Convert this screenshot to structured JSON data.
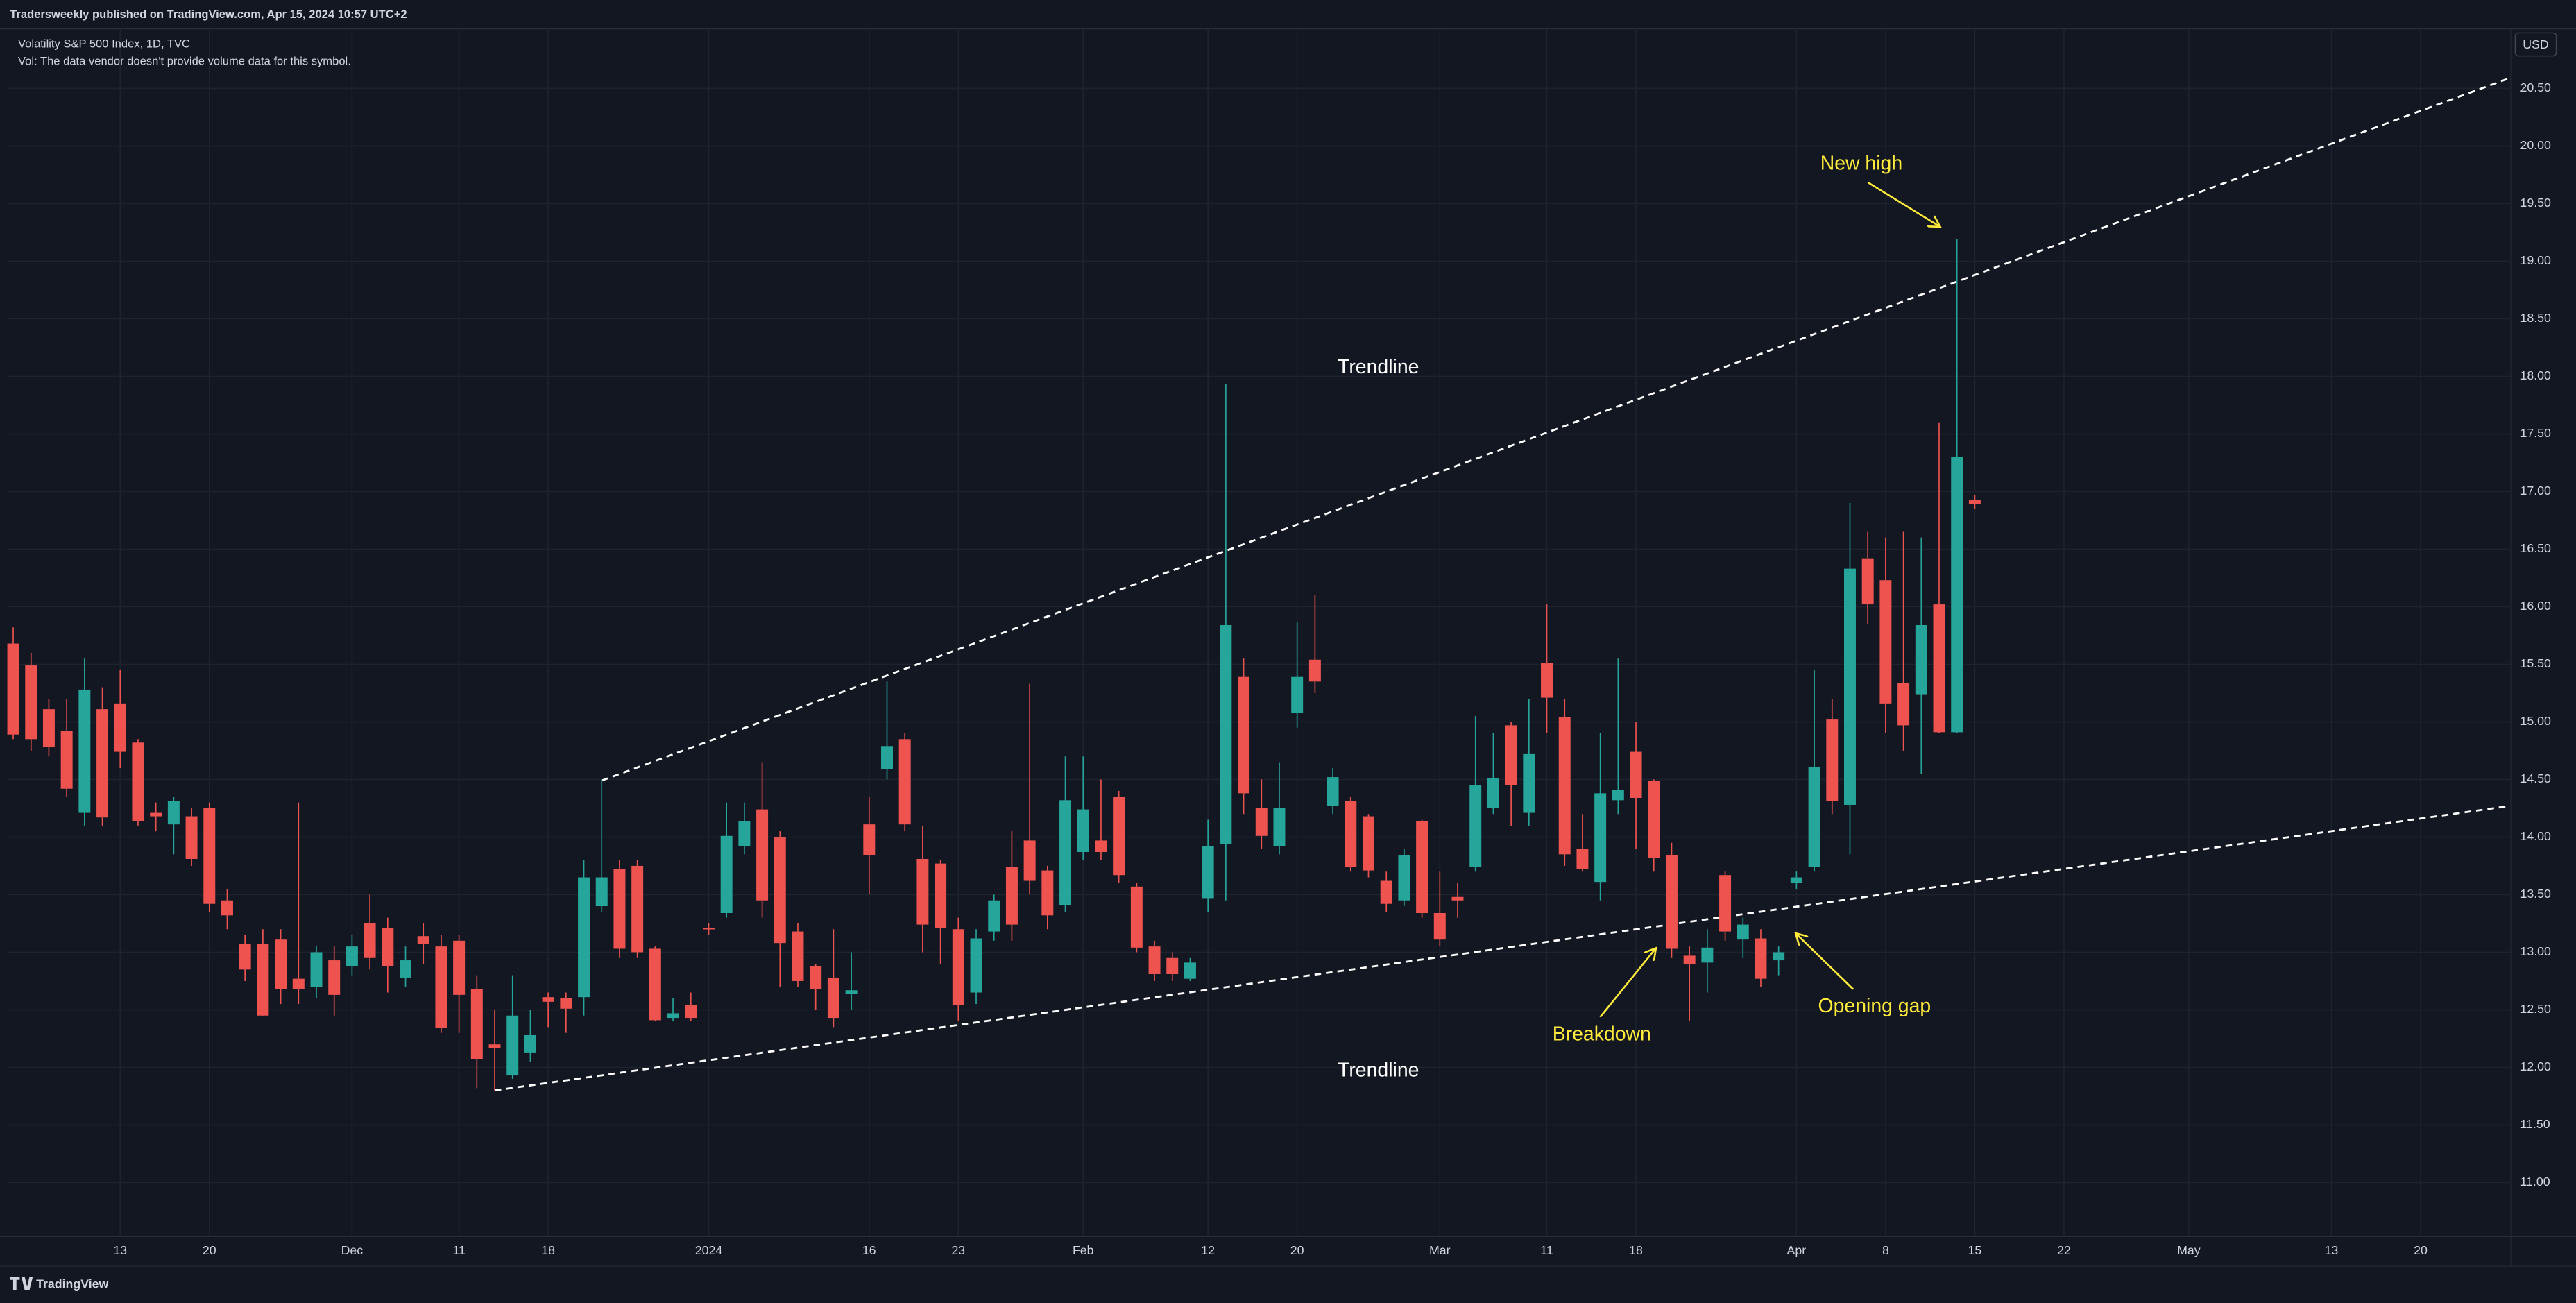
{
  "header": {
    "published": "Tradersweekly published on TradingView.com, Apr 15, 2024 10:57 UTC+2",
    "symbol": "Volatility S&P 500 Index, 1D, TVC",
    "volume_note": "Vol: The data vendor doesn't provide volume data for this symbol."
  },
  "footer": {
    "brand": "TradingView"
  },
  "chart_data": {
    "type": "candlestick",
    "currency": "USD",
    "up_color": "#26a69a",
    "down_color": "#ef5350",
    "grid": true,
    "open": [
      15.68,
      15.49,
      15.11,
      14.92,
      14.21,
      15.11,
      15.16,
      14.82,
      14.21,
      14.11,
      14.18,
      14.25,
      13.45,
      13.07,
      13.07,
      13.11,
      12.77,
      12.7,
      12.93,
      12.88,
      13.25,
      13.21,
      12.78,
      13.14,
      13.05,
      13.1,
      12.68,
      12.2,
      11.93,
      12.13,
      12.61,
      12.6,
      12.61,
      13.4,
      13.72,
      13.75,
      13.03,
      12.43,
      12.54,
      13.21,
      13.34,
      13.92,
      14.24,
      14.0,
      13.18,
      12.88,
      12.78,
      12.64,
      14.11,
      14.59,
      14.85,
      13.81,
      13.77,
      13.2,
      12.65,
      13.18,
      13.74,
      13.97,
      13.71,
      13.41,
      13.87,
      13.97,
      14.35,
      13.57,
      13.05,
      12.95,
      12.77,
      13.47,
      13.94,
      15.39,
      14.25,
      13.92,
      15.08,
      15.54,
      14.27,
      14.31,
      14.18,
      13.62,
      13.45,
      14.14,
      13.34,
      13.48,
      13.74,
      14.25,
      14.97,
      14.21,
      15.51,
      15.04,
      13.9,
      13.61,
      14.32,
      14.74,
      14.49,
      13.84,
      12.97,
      12.91,
      13.67,
      13.11,
      13.12,
      12.93,
      13.6,
      13.74,
      15.02,
      14.28,
      16.42,
      16.23,
      15.34,
      15.24,
      16.02,
      14.91,
      16.93
    ],
    "high": [
      15.82,
      15.6,
      15.2,
      15.2,
      15.55,
      15.3,
      15.45,
      14.85,
      14.3,
      14.35,
      14.25,
      14.3,
      13.55,
      13.15,
      13.2,
      13.2,
      14.3,
      13.05,
      13.05,
      13.15,
      13.5,
      13.3,
      13.05,
      13.25,
      13.15,
      13.15,
      12.8,
      12.5,
      12.8,
      12.5,
      12.65,
      12.65,
      13.8,
      14.5,
      13.8,
      13.8,
      13.05,
      12.6,
      12.65,
      13.25,
      14.3,
      14.3,
      14.65,
      14.05,
      13.25,
      12.9,
      13.2,
      13.0,
      14.35,
      15.35,
      14.9,
      14.1,
      13.8,
      13.3,
      13.2,
      13.5,
      14.05,
      15.33,
      13.75,
      14.7,
      14.7,
      14.5,
      14.4,
      13.6,
      13.1,
      13.0,
      12.95,
      14.15,
      17.93,
      15.55,
      14.5,
      14.65,
      15.87,
      16.1,
      14.6,
      14.35,
      14.2,
      13.7,
      13.9,
      14.15,
      13.7,
      13.6,
      15.05,
      14.9,
      15.0,
      15.2,
      16.02,
      15.2,
      14.2,
      14.9,
      15.55,
      15.0,
      14.5,
      13.95,
      13.05,
      13.2,
      13.7,
      13.3,
      13.2,
      13.05,
      13.7,
      15.45,
      15.2,
      16.9,
      16.65,
      16.6,
      16.65,
      16.6,
      17.6,
      19.19,
      16.97
    ],
    "low": [
      14.85,
      14.75,
      14.7,
      14.35,
      14.1,
      14.1,
      14.6,
      14.1,
      14.05,
      13.85,
      13.75,
      13.35,
      13.2,
      12.75,
      12.45,
      12.55,
      12.55,
      12.6,
      12.45,
      12.8,
      12.85,
      12.65,
      12.7,
      12.9,
      12.3,
      12.3,
      11.82,
      11.8,
      11.9,
      12.05,
      12.35,
      12.3,
      12.45,
      13.35,
      12.95,
      12.95,
      12.4,
      12.4,
      12.4,
      13.15,
      13.3,
      13.85,
      13.3,
      12.7,
      12.7,
      12.5,
      12.35,
      12.5,
      13.5,
      14.5,
      14.05,
      13.0,
      12.9,
      12.4,
      12.55,
      13.1,
      13.1,
      13.5,
      13.2,
      13.35,
      13.8,
      13.8,
      13.6,
      13.0,
      12.75,
      12.75,
      12.75,
      13.35,
      13.45,
      14.2,
      13.9,
      13.85,
      14.95,
      15.25,
      14.2,
      13.7,
      13.65,
      13.35,
      13.4,
      13.3,
      13.05,
      13.3,
      13.7,
      14.2,
      14.1,
      14.1,
      14.9,
      13.75,
      13.7,
      13.45,
      14.2,
      13.9,
      13.7,
      12.95,
      12.4,
      12.65,
      13.1,
      12.95,
      12.7,
      12.8,
      13.55,
      13.7,
      14.2,
      13.85,
      15.85,
      14.9,
      14.75,
      14.55,
      14.9,
      14.9,
      16.85
    ],
    "close": [
      14.89,
      14.85,
      14.78,
      14.42,
      15.28,
      14.17,
      14.74,
      14.14,
      14.18,
      14.31,
      13.81,
      13.42,
      13.32,
      12.85,
      12.45,
      12.68,
      12.68,
      13.0,
      12.63,
      13.05,
      12.95,
      12.88,
      12.93,
      13.07,
      12.34,
      12.63,
      12.07,
      12.17,
      12.45,
      12.28,
      12.57,
      12.51,
      13.65,
      13.65,
      13.03,
      13.0,
      12.41,
      12.47,
      12.43,
      13.2,
      14.01,
      14.14,
      13.45,
      13.08,
      12.75,
      12.68,
      12.43,
      12.67,
      13.84,
      14.79,
      14.11,
      13.24,
      13.21,
      12.54,
      13.12,
      13.45,
      13.24,
      13.62,
      13.32,
      14.32,
      14.24,
      13.87,
      13.67,
      13.04,
      12.81,
      12.81,
      12.91,
      13.92,
      15.84,
      14.38,
      14.01,
      14.25,
      15.39,
      15.35,
      14.52,
      13.74,
      13.71,
      13.42,
      13.84,
      13.34,
      13.11,
      13.45,
      14.45,
      14.51,
      14.45,
      14.72,
      15.21,
      13.85,
      13.72,
      14.38,
      14.41,
      14.34,
      13.82,
      13.03,
      12.9,
      13.04,
      13.18,
      13.24,
      12.77,
      13.0,
      13.65,
      14.61,
      14.31,
      16.33,
      16.02,
      15.16,
      14.97,
      15.84,
      14.91,
      17.3,
      16.89
    ],
    "xlim": [
      -0.28,
      140.03
    ],
    "xticks": [
      {
        "value": 6,
        "label": "13"
      },
      {
        "value": 11,
        "label": "20"
      },
      {
        "value": 19,
        "label": "Dec"
      },
      {
        "value": 25,
        "label": "11"
      },
      {
        "value": 30,
        "label": "18"
      },
      {
        "value": 39,
        "label": "2024"
      },
      {
        "value": 48,
        "label": "16"
      },
      {
        "value": 53,
        "label": "23"
      },
      {
        "value": 60,
        "label": "Feb"
      },
      {
        "value": 67,
        "label": "12"
      },
      {
        "value": 72,
        "label": "20"
      },
      {
        "value": 80,
        "label": "Mar"
      },
      {
        "value": 86,
        "label": "11"
      },
      {
        "value": 91,
        "label": "18"
      },
      {
        "value": 100,
        "label": "Apr"
      },
      {
        "value": 105,
        "label": "8"
      },
      {
        "value": 110,
        "label": "15"
      },
      {
        "value": 115,
        "label": "22"
      },
      {
        "value": 122,
        "label": "May"
      },
      {
        "value": 130,
        "label": "13"
      },
      {
        "value": 135,
        "label": "20"
      }
    ],
    "ylim": [
      10.54,
      21.01
    ],
    "yticks": [
      {
        "value": 11,
        "label": "11.00"
      },
      {
        "value": 11.5,
        "label": "11.50"
      },
      {
        "value": 12,
        "label": "12.00"
      },
      {
        "value": 12.5,
        "label": "12.50"
      },
      {
        "value": 13,
        "label": "13.00"
      },
      {
        "value": 13.5,
        "label": "13.50"
      },
      {
        "value": 14,
        "label": "14.00"
      },
      {
        "value": 14.5,
        "label": "14.50"
      },
      {
        "value": 15,
        "label": "15.00"
      },
      {
        "value": 15.5,
        "label": "15.50"
      },
      {
        "value": 16,
        "label": "16.00"
      },
      {
        "value": 16.5,
        "label": "16.50"
      },
      {
        "value": 17,
        "label": "17.00"
      },
      {
        "value": 17.5,
        "label": "17.50"
      },
      {
        "value": 18,
        "label": "18.00"
      },
      {
        "value": 18.5,
        "label": "18.50"
      },
      {
        "value": 19,
        "label": "19.00"
      },
      {
        "value": 19.5,
        "label": "19.50"
      },
      {
        "value": 20,
        "label": "20.00"
      },
      {
        "value": 20.5,
        "label": "20.50"
      }
    ],
    "trendlines": [
      {
        "x": [
          33,
          140
        ],
        "y": [
          14.49,
          20.59
        ]
      },
      {
        "x": [
          27,
          140
        ],
        "y": [
          11.8,
          14.27
        ]
      }
    ],
    "annotations": [
      "Trendline",
      "Trendline",
      "New high",
      "Breakdown",
      "Opening gap"
    ]
  }
}
